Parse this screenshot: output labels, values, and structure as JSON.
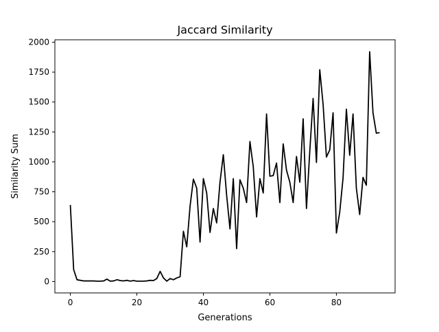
{
  "chart_data": {
    "type": "line",
    "title": "Jaccard Similarity",
    "xlabel": "Generations",
    "ylabel": "Similarity Sum",
    "xlim": [
      -4.65,
      97.65
    ],
    "ylim": [
      -95,
      2020
    ],
    "x_ticks": [
      0,
      20,
      40,
      60,
      80
    ],
    "y_ticks": [
      0,
      250,
      500,
      750,
      1000,
      1250,
      1500,
      1750,
      2000
    ],
    "x_tick_labels": [
      "0",
      "20",
      "40",
      "60",
      "80"
    ],
    "y_tick_labels": [
      "0",
      "250",
      "500",
      "750",
      "1000",
      "1250",
      "1500",
      "1750",
      "2000"
    ],
    "grid": false,
    "legend": "none",
    "series": [
      {
        "color": "#000000",
        "x": [
          0,
          1,
          2,
          3,
          4,
          5,
          6,
          7,
          8,
          9,
          10,
          11,
          12,
          13,
          14,
          15,
          16,
          17,
          18,
          19,
          20,
          21,
          22,
          23,
          24,
          25,
          26,
          27,
          28,
          29,
          30,
          31,
          32,
          33,
          34,
          35,
          36,
          37,
          38,
          39,
          40,
          41,
          42,
          43,
          44,
          45,
          46,
          47,
          48,
          49,
          50,
          51,
          52,
          53,
          54,
          55,
          56,
          57,
          58,
          59,
          60,
          61,
          62,
          63,
          64,
          65,
          66,
          67,
          68,
          69,
          70,
          71,
          72,
          73,
          74,
          75,
          76,
          77,
          78,
          79,
          80,
          81,
          82,
          83,
          84,
          85,
          86,
          87,
          88,
          89,
          90,
          91,
          92,
          93
        ],
        "y": [
          640,
          100,
          15,
          10,
          5,
          5,
          5,
          5,
          3,
          3,
          5,
          20,
          3,
          5,
          15,
          8,
          5,
          10,
          3,
          8,
          3,
          3,
          3,
          5,
          10,
          8,
          25,
          85,
          30,
          3,
          25,
          15,
          30,
          40,
          420,
          290,
          630,
          855,
          780,
          330,
          860,
          740,
          410,
          610,
          490,
          830,
          1060,
          720,
          440,
          860,
          275,
          850,
          780,
          660,
          1170,
          960,
          540,
          860,
          740,
          1400,
          880,
          885,
          990,
          660,
          1150,
          930,
          830,
          660,
          1045,
          830,
          1360,
          610,
          1090,
          1530,
          995,
          1770,
          1480,
          1040,
          1100,
          1410,
          405,
          580,
          865,
          1440,
          1055,
          1400,
          780,
          560,
          870,
          805,
          1920,
          1410,
          1240,
          1245
        ]
      }
    ]
  }
}
